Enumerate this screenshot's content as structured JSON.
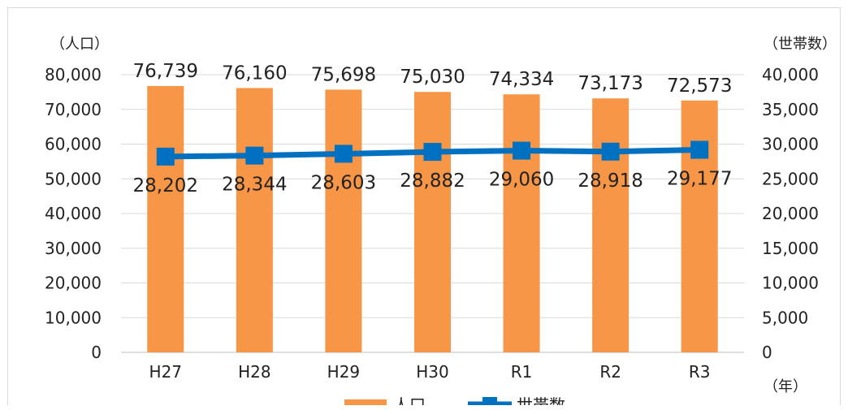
{
  "chart_data": {
    "type": "bar",
    "categories": [
      "H27",
      "H28",
      "H29",
      "H30",
      "R1",
      "R2",
      "R3"
    ],
    "series": [
      {
        "name": "人口",
        "type": "bar",
        "axis": "left",
        "color": "#f79646",
        "values": [
          76739,
          76160,
          75698,
          75030,
          74334,
          73173,
          72573
        ],
        "value_labels": [
          "76,739",
          "76,160",
          "75,698",
          "75,030",
          "74,334",
          "73,173",
          "72,573"
        ]
      },
      {
        "name": "世帯数",
        "type": "line",
        "axis": "right",
        "color": "#0070c0",
        "marker": "square",
        "values": [
          28202,
          28344,
          28603,
          28882,
          29060,
          28918,
          29177
        ],
        "value_labels": [
          "28,202",
          "28,344",
          "28,603",
          "28,882",
          "29,060",
          "28,918",
          "29,177"
        ]
      }
    ],
    "y_left": {
      "unit": "（人口）",
      "range": [
        0,
        80000
      ],
      "ticks": [
        "0",
        "10,000",
        "20,000",
        "30,000",
        "40,000",
        "50,000",
        "60,000",
        "70,000",
        "80,000"
      ]
    },
    "y_right": {
      "unit": "（世帯数）",
      "range": [
        0,
        40000
      ],
      "ticks": [
        "0",
        "5,000",
        "10,000",
        "15,000",
        "20,000",
        "25,000",
        "30,000",
        "35,000",
        "40,000"
      ]
    },
    "x_unit": "（年）",
    "grid": true,
    "legend": {
      "position": "bottom",
      "items": [
        "人口",
        "世帯数"
      ]
    }
  }
}
